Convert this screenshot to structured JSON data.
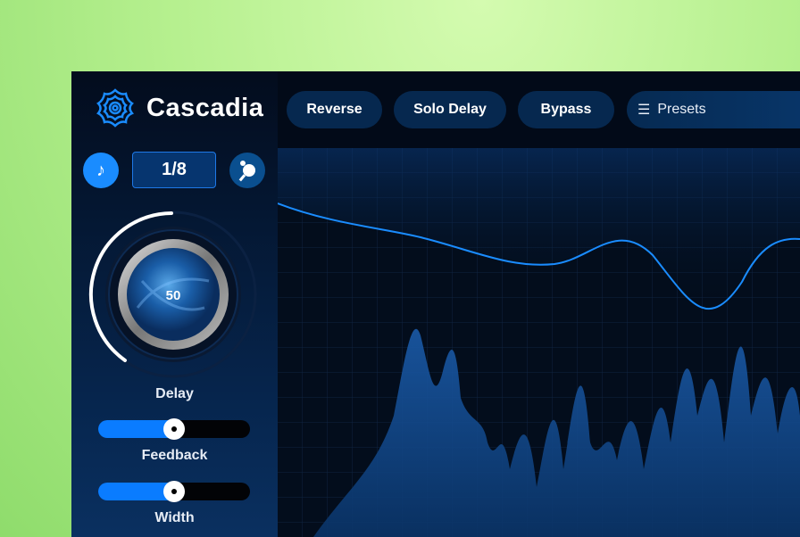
{
  "app": {
    "name": "Cascadia",
    "logo_icon": "spiral-flower-icon"
  },
  "header": {
    "buttons": [
      "Reverse",
      "Solo Delay",
      "Bypass"
    ],
    "presets_label": "Presets",
    "presets_icon": "list-icon"
  },
  "sidebar": {
    "sync_icon": "music-note-icon",
    "rate": "1/8",
    "pingpong_icon": "ping-pong-icon",
    "delay": {
      "label": "Delay",
      "value": "50",
      "level": 0.5
    },
    "feedback": {
      "label": "Feedback",
      "value": 0.5
    },
    "width": {
      "label": "Width",
      "value": 0.5
    }
  },
  "colors": {
    "accent": "#0a7cff",
    "background": "#020a18",
    "panel": "#06284f"
  }
}
